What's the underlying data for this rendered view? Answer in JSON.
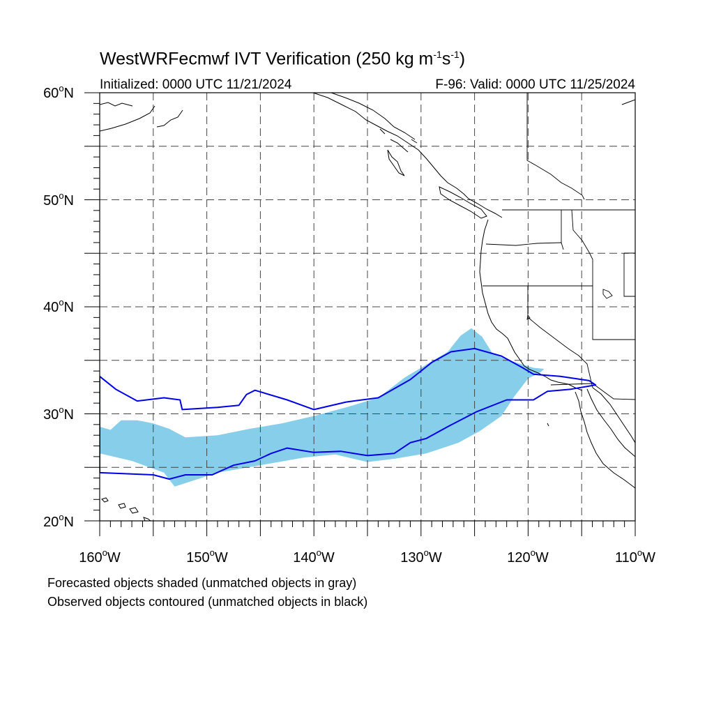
{
  "title": {
    "main": "WestWRFecmwf IVT Verification (250 kg m",
    "sup1": "-1",
    "mid": "s",
    "sup2": "-1",
    "end": ")"
  },
  "subtitle_left": "Initialized: 0000 UTC 11/21/2024",
  "subtitle_right": "F-96: Valid: 0000 UTC 11/25/2024",
  "lat_labels": [
    {
      "deg": "60",
      "hem": "N",
      "value": 60
    },
    {
      "deg": "50",
      "hem": "N",
      "value": 50
    },
    {
      "deg": "40",
      "hem": "N",
      "value": 40
    },
    {
      "deg": "30",
      "hem": "N",
      "value": 30
    },
    {
      "deg": "20",
      "hem": "N",
      "value": 20
    }
  ],
  "lon_labels": [
    {
      "deg": "160",
      "hem": "W",
      "value": -160
    },
    {
      "deg": "150",
      "hem": "W",
      "value": -150
    },
    {
      "deg": "140",
      "hem": "W",
      "value": -140
    },
    {
      "deg": "130",
      "hem": "W",
      "value": -130
    },
    {
      "deg": "120",
      "hem": "W",
      "value": -120
    },
    {
      "deg": "110",
      "hem": "W",
      "value": -110
    }
  ],
  "extent": {
    "lon_min": -160,
    "lon_max": -110,
    "lat_min": 20,
    "lat_max": 60
  },
  "gridlines": {
    "lon_step": 5,
    "lat_step": 5,
    "style": "dashed"
  },
  "captions": [
    "Forecasted objects shaded (unmatched objects in gray)",
    "Observed objects contoured (unmatched objects in black)"
  ],
  "colors": {
    "forecast_fill": "#87ceeb",
    "observed_contour": "#0000e6",
    "coastline": "#000000",
    "grid": "#444444"
  },
  "forecast_object": [
    [
      -160,
      28.8
    ],
    [
      -159,
      28.5
    ],
    [
      -158,
      29.4
    ],
    [
      -156.5,
      29.4
    ],
    [
      -155,
      29.1
    ],
    [
      -153.5,
      28.6
    ],
    [
      -152,
      27.8
    ],
    [
      -149,
      28
    ],
    [
      -146,
      28.6
    ],
    [
      -143,
      29.1
    ],
    [
      -140,
      29.8
    ],
    [
      -137,
      30.6
    ],
    [
      -134,
      31.5
    ],
    [
      -131.5,
      33.4
    ],
    [
      -129,
      34.9
    ],
    [
      -127.5,
      35.8
    ],
    [
      -126.3,
      37.3
    ],
    [
      -125.3,
      38
    ],
    [
      -124.3,
      37.2
    ],
    [
      -123.3,
      35.6
    ],
    [
      -121.8,
      35
    ],
    [
      -119.5,
      34.3
    ],
    [
      -118.5,
      34.2
    ],
    [
      -118.8,
      33.9
    ],
    [
      -120,
      33.3
    ],
    [
      -121.3,
      31.6
    ],
    [
      -122.5,
      29.8
    ],
    [
      -124.5,
      28.4
    ],
    [
      -126.5,
      27.3
    ],
    [
      -129.5,
      26.3
    ],
    [
      -132.5,
      25.8
    ],
    [
      -135,
      25.5
    ],
    [
      -138,
      26.2
    ],
    [
      -141,
      25.9
    ],
    [
      -145,
      25.2
    ],
    [
      -149,
      24.5
    ],
    [
      -153,
      23.2
    ],
    [
      -154,
      24.5
    ],
    [
      -157,
      25.6
    ],
    [
      -160,
      26.3
    ]
  ],
  "observed_objects": [
    [
      [
        -160,
        33.5
      ],
      [
        -158.5,
        32.3
      ],
      [
        -156.5,
        31.2
      ],
      [
        -154,
        31.5
      ],
      [
        -152.5,
        31.3
      ],
      [
        -152.3,
        30.4
      ],
      [
        -149,
        30.6
      ],
      [
        -147,
        30.8
      ],
      [
        -146.3,
        31.8
      ],
      [
        -145.5,
        32.2
      ],
      [
        -142.5,
        31.3
      ],
      [
        -140,
        30.4
      ],
      [
        -137,
        31.1
      ],
      [
        -134,
        31.5
      ],
      [
        -131,
        33.2
      ],
      [
        -129,
        34.8
      ],
      [
        -127.2,
        35.8
      ],
      [
        -125,
        36.1
      ],
      [
        -122.5,
        35.4
      ],
      [
        -120.5,
        34.3
      ],
      [
        -119.5,
        33.7
      ],
      [
        -117,
        33.5
      ],
      [
        -114.3,
        33.1
      ],
      [
        -113.7,
        32.7
      ],
      [
        -116,
        32.3
      ],
      [
        -118.2,
        32.1
      ],
      [
        -119.5,
        31.3
      ],
      [
        -122,
        31.3
      ],
      [
        -124.8,
        30.2
      ],
      [
        -127.5,
        28.8
      ],
      [
        -129.5,
        27.7
      ],
      [
        -131,
        27.3
      ],
      [
        -132.5,
        26.3
      ],
      [
        -135,
        26.1
      ],
      [
        -137.5,
        26.5
      ],
      [
        -140,
        26.4
      ],
      [
        -142.5,
        26.8
      ],
      [
        -144,
        26.3
      ],
      [
        -145.5,
        25.6
      ],
      [
        -147.5,
        25.2
      ],
      [
        -149.5,
        24.3
      ],
      [
        -152,
        24.3
      ],
      [
        -153.5,
        23.9
      ],
      [
        -155,
        24.3
      ],
      [
        -160,
        24.5
      ]
    ]
  ]
}
